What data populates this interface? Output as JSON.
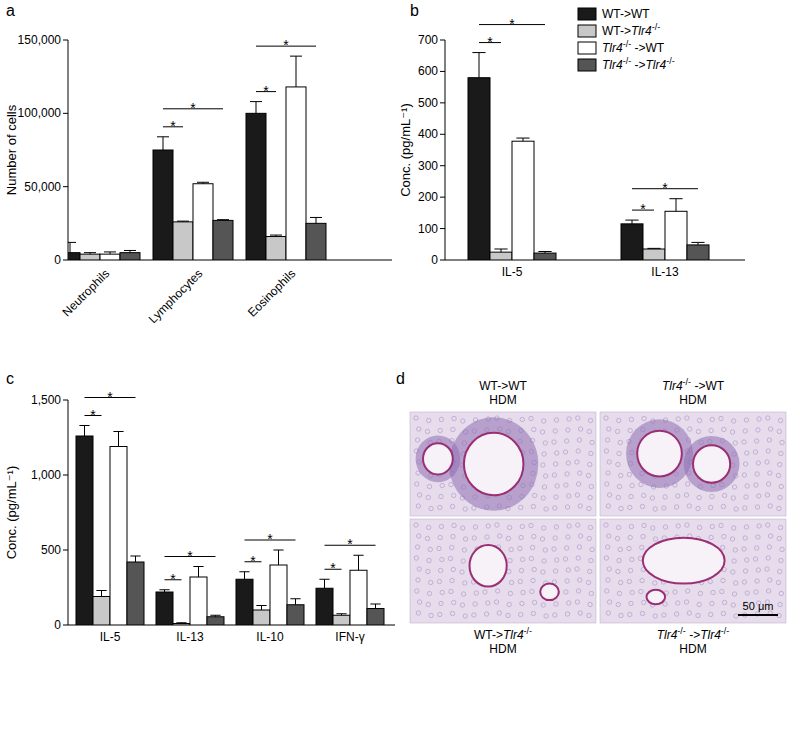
{
  "chart_data": [
    {
      "type": "bar",
      "panel": "a",
      "y_label": "Number of cells",
      "categories": [
        "Neutrophils",
        "Lymphocytes",
        "Eosinophils"
      ],
      "series": [
        {
          "color": "#1a1a1a",
          "values": [
            5000,
            75000,
            100000
          ],
          "errors": [
            7000,
            9000,
            8000
          ]
        },
        {
          "color": "#c8c8c8",
          "values": [
            4000,
            26000,
            16000
          ],
          "errors": [
            1000,
            500,
            1000
          ]
        },
        {
          "color": "#ffffff",
          "values": [
            4000,
            52000,
            118000
          ],
          "errors": [
            1500,
            1000,
            21000
          ]
        },
        {
          "color": "#555555",
          "values": [
            5000,
            27000,
            25000
          ],
          "errors": [
            1500,
            500,
            4000
          ]
        }
      ],
      "ylim": [
        0,
        150000
      ],
      "yticks": [
        0,
        {
          "value": 50000,
          "label": "50,000"
        },
        {
          "value": 100000,
          "label": "100,000"
        },
        {
          "value": 150000,
          "label": "150,000"
        }
      ],
      "annotations": [
        {
          "text": "*",
          "category": 1,
          "from": 0,
          "to": 1
        },
        {
          "text": "*",
          "category": 1,
          "from": 0,
          "to": 3
        },
        {
          "text": "*",
          "category": 2,
          "from": 0,
          "to": 1
        },
        {
          "text": "*",
          "category": 2,
          "from": 0,
          "to": 3
        }
      ]
    },
    {
      "type": "bar",
      "panel": "b",
      "y_label": "Conc. (pg/mL⁻¹)",
      "categories": [
        "IL-5",
        "IL-13"
      ],
      "series": [
        {
          "name": "WT->WT",
          "color": "#1a1a1a",
          "values": [
            580,
            115
          ],
          "errors": [
            80,
            12
          ]
        },
        {
          "name": "WT->Tlr4-/-",
          "color": "#c8c8c8",
          "values": [
            25,
            35
          ],
          "errors": [
            10,
            2
          ]
        },
        {
          "name": "Tlr4-/- ->WT",
          "color": "#ffffff",
          "values": [
            378,
            155
          ],
          "errors": [
            10,
            40
          ]
        },
        {
          "name": "Tlr4-/- ->Tlr4-/-",
          "color": "#555555",
          "values": [
            22,
            48
          ],
          "errors": [
            5,
            8
          ]
        }
      ],
      "ylim": [
        0,
        700
      ],
      "yticks": [
        0,
        100,
        200,
        300,
        400,
        500,
        600,
        700
      ],
      "legend": "top-right",
      "annotations": [
        {
          "text": "*",
          "category": 0,
          "from": 0,
          "to": 1
        },
        {
          "text": "*",
          "category": 0,
          "from": 0,
          "to": 3
        },
        {
          "text": "*",
          "category": 1,
          "from": 0,
          "to": 1
        },
        {
          "text": "*",
          "category": 1,
          "from": 0,
          "to": 3
        }
      ]
    },
    {
      "type": "bar",
      "panel": "c",
      "y_label": "Conc. (pg/mL⁻¹)",
      "categories": [
        "IL-5",
        "IL-13",
        "IL-10",
        "IFN-γ"
      ],
      "series": [
        {
          "color": "#1a1a1a",
          "values": [
            1260,
            220,
            305,
            245
          ],
          "errors": [
            70,
            15,
            50,
            60
          ]
        },
        {
          "color": "#c8c8c8",
          "values": [
            190,
            10,
            100,
            65
          ],
          "errors": [
            40,
            5,
            30,
            10
          ]
        },
        {
          "color": "#ffffff",
          "values": [
            1190,
            320,
            400,
            365
          ],
          "errors": [
            100,
            70,
            100,
            100
          ]
        },
        {
          "color": "#555555",
          "values": [
            420,
            55,
            135,
            110
          ],
          "errors": [
            40,
            10,
            40,
            30
          ]
        }
      ],
      "ylim": [
        0,
        1500
      ],
      "yticks": [
        0,
        500,
        {
          "value": 1000,
          "label": "1,000"
        },
        {
          "value": 1500,
          "label": "1,500"
        }
      ],
      "annotations": [
        {
          "text": "*",
          "category": 0,
          "from": 0,
          "to": 1
        },
        {
          "text": "*",
          "category": 0,
          "from": 0,
          "to": 3
        },
        {
          "text": "*",
          "category": 1,
          "from": 0,
          "to": 1
        },
        {
          "text": "*",
          "category": 1,
          "from": 0,
          "to": 3
        },
        {
          "text": "*",
          "category": 2,
          "from": 0,
          "to": 1
        },
        {
          "text": "*",
          "category": 2,
          "from": 0,
          "to": 3
        },
        {
          "text": "*",
          "category": 3,
          "from": 0,
          "to": 1
        },
        {
          "text": "*",
          "category": 3,
          "from": 0,
          "to": 3
        }
      ]
    }
  ],
  "image_panel": {
    "panel": "d",
    "images": [
      {
        "label": [
          "WT->WT",
          "HDM"
        ]
      },
      {
        "label": [
          "Tlr4-/- ->WT",
          "HDM"
        ]
      },
      {
        "label": [
          "WT->Tlr4-/-",
          "HDM"
        ]
      },
      {
        "label": [
          "Tlr4-/- ->Tlr4-/-",
          "HDM"
        ]
      }
    ],
    "scale_bar": "50 μm"
  }
}
